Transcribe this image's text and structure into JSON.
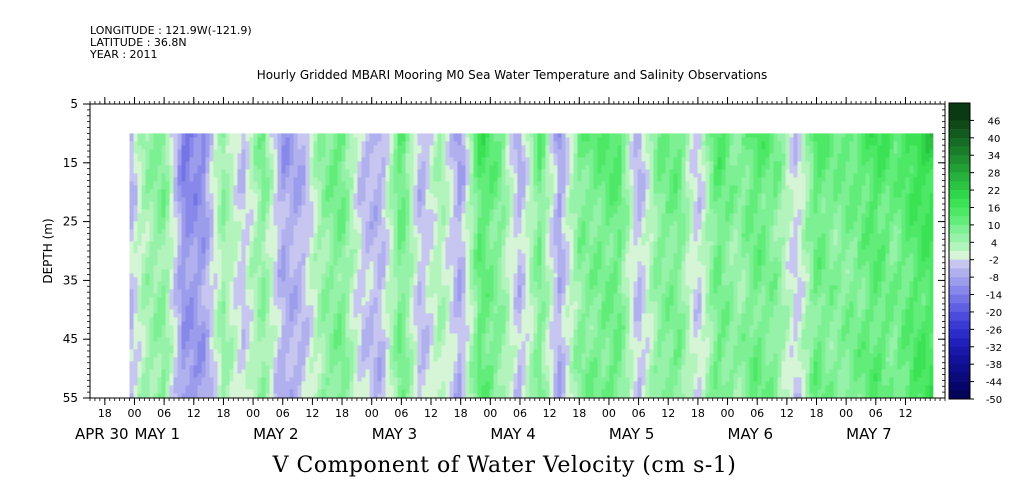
{
  "header": {
    "longitude": "LONGITUDE : 121.9W(-121.9)",
    "latitude": "LATITUDE : 36.8N",
    "year": "YEAR : 2011",
    "title": "Hourly Gridded MBARI Mooring M0 Sea Water Temperature and Salinity Observations"
  },
  "caption": "V Component of Water Velocity (cm s-1)",
  "chart_data": {
    "type": "heatmap",
    "title": "Hourly Gridded MBARI Mooring M0 Sea Water Temperature and Salinity Observations",
    "xlabel": "",
    "ylabel": "DEPTH (m)",
    "value_label": "V Component of Water Velocity (cm s-1)",
    "ylim": [
      55,
      5
    ],
    "y_ticks": [
      5,
      15,
      25,
      35,
      45,
      55
    ],
    "data_depth_range": [
      10,
      55
    ],
    "x_start": "2011-04-30 15:00",
    "x_end": "2011-05-07 20:00",
    "data_x_start": "2011-04-30 23:00",
    "x_tick_labels": [
      "18",
      "00",
      "06",
      "12",
      "18",
      "00",
      "06",
      "12",
      "18",
      "00",
      "06",
      "12",
      "18",
      "00",
      "06",
      "12",
      "18",
      "00",
      "06",
      "12",
      "18",
      "00",
      "06",
      "12",
      "18",
      "00",
      "06",
      "12"
    ],
    "x_tick_times": [
      "2011-04-30 18:00",
      "2011-05-01 00:00",
      "2011-05-01 06:00",
      "2011-05-01 12:00",
      "2011-05-01 18:00",
      "2011-05-02 00:00",
      "2011-05-02 06:00",
      "2011-05-02 12:00",
      "2011-05-02 18:00",
      "2011-05-03 00:00",
      "2011-05-03 06:00",
      "2011-05-03 12:00",
      "2011-05-03 18:00",
      "2011-05-04 00:00",
      "2011-05-04 06:00",
      "2011-05-04 12:00",
      "2011-05-04 18:00",
      "2011-05-05 00:00",
      "2011-05-05 06:00",
      "2011-05-05 12:00",
      "2011-05-05 18:00",
      "2011-05-06 00:00",
      "2011-05-06 06:00",
      "2011-05-06 12:00",
      "2011-05-06 18:00",
      "2011-05-07 00:00",
      "2011-05-07 06:00",
      "2011-05-07 12:00"
    ],
    "day_labels": [
      "APR 30",
      "MAY  1",
      "MAY  2",
      "MAY  3",
      "MAY  4",
      "MAY  5",
      "MAY  6",
      "MAY  7"
    ],
    "day_label_times": [
      "2011-04-30 00:00",
      "2011-05-01 00:00",
      "2011-05-02 00:00",
      "2011-05-03 00:00",
      "2011-05-04 00:00",
      "2011-05-05 00:00",
      "2011-05-06 00:00",
      "2011-05-07 00:00"
    ],
    "colorbar": {
      "labels": [
        "46",
        "40",
        "34",
        "28",
        "22",
        "16",
        "10",
        "4",
        "-2",
        "-8",
        "-14",
        "-20",
        "-26",
        "-32",
        "-38",
        "-44",
        "-50"
      ],
      "bins": [
        {
          "min": 46,
          "max": 52,
          "color": "#0a3a12"
        },
        {
          "min": 43,
          "max": 46,
          "color": "#0f4a18"
        },
        {
          "min": 40,
          "max": 43,
          "color": "#125a1e"
        },
        {
          "min": 37,
          "max": 40,
          "color": "#166c24"
        },
        {
          "min": 34,
          "max": 37,
          "color": "#1a7d2a"
        },
        {
          "min": 31,
          "max": 34,
          "color": "#1e8e30"
        },
        {
          "min": 28,
          "max": 31,
          "color": "#22a036"
        },
        {
          "min": 25,
          "max": 28,
          "color": "#26b23c"
        },
        {
          "min": 22,
          "max": 25,
          "color": "#2ac442"
        },
        {
          "min": 19,
          "max": 22,
          "color": "#30d64a"
        },
        {
          "min": 16,
          "max": 19,
          "color": "#3ae254"
        },
        {
          "min": 13,
          "max": 16,
          "color": "#4ce866"
        },
        {
          "min": 10,
          "max": 13,
          "color": "#62ec7a"
        },
        {
          "min": 7,
          "max": 10,
          "color": "#7cf092"
        },
        {
          "min": 4,
          "max": 7,
          "color": "#96f2a8"
        },
        {
          "min": 1,
          "max": 4,
          "color": "#b2f4bc"
        },
        {
          "min": -2,
          "max": 1,
          "color": "#d6f4d6"
        },
        {
          "min": -5,
          "max": -2,
          "color": "#c6c6f0"
        },
        {
          "min": -8,
          "max": -5,
          "color": "#b0b0ee"
        },
        {
          "min": -11,
          "max": -8,
          "color": "#9c9cec"
        },
        {
          "min": -14,
          "max": -11,
          "color": "#8888ea"
        },
        {
          "min": -17,
          "max": -14,
          "color": "#7474e6"
        },
        {
          "min": -20,
          "max": -17,
          "color": "#6060e2"
        },
        {
          "min": -23,
          "max": -20,
          "color": "#4c4cdc"
        },
        {
          "min": -26,
          "max": -23,
          "color": "#3a3ad4"
        },
        {
          "min": -29,
          "max": -26,
          "color": "#2c2cc8"
        },
        {
          "min": -32,
          "max": -29,
          "color": "#2020ba"
        },
        {
          "min": -35,
          "max": -32,
          "color": "#1818aa"
        },
        {
          "min": -38,
          "max": -35,
          "color": "#12129a"
        },
        {
          "min": -41,
          "max": -38,
          "color": "#0e0e8a"
        },
        {
          "min": -44,
          "max": -41,
          "color": "#0a0a7a"
        },
        {
          "min": -47,
          "max": -44,
          "color": "#06066a"
        },
        {
          "min": -50,
          "max": -47,
          "color": "#03035a"
        }
      ]
    },
    "vertical_profile_cm_s": [
      {
        "depth": 10,
        "v": 10
      },
      {
        "depth": 15,
        "v": 7
      },
      {
        "depth": 20,
        "v": 5
      },
      {
        "depth": 25,
        "v": 3
      },
      {
        "depth": 30,
        "v": 2
      },
      {
        "depth": 35,
        "v": 1
      },
      {
        "depth": 40,
        "v": 1
      },
      {
        "depth": 45,
        "v": 2
      },
      {
        "depth": 50,
        "v": 3
      },
      {
        "depth": 55,
        "v": 3
      }
    ],
    "column_pattern_cm_s": [
      {
        "time": "2011-04-30 23:00",
        "v": -6
      },
      {
        "time": "2011-05-01 02:00",
        "v": 4
      },
      {
        "time": "2011-05-01 06:00",
        "v": 8
      },
      {
        "time": "2011-05-01 10:00",
        "v": -12
      },
      {
        "time": "2011-05-01 14:00",
        "v": -10
      },
      {
        "time": "2011-05-01 18:00",
        "v": 6
      },
      {
        "time": "2011-05-01 22:00",
        "v": -4
      },
      {
        "time": "2011-05-02 02:00",
        "v": 8
      },
      {
        "time": "2011-05-02 06:00",
        "v": -8
      },
      {
        "time": "2011-05-02 10:00",
        "v": -6
      },
      {
        "time": "2011-05-02 14:00",
        "v": 6
      },
      {
        "time": "2011-05-02 18:00",
        "v": 10
      },
      {
        "time": "2011-05-02 22:00",
        "v": -4
      },
      {
        "time": "2011-05-03 02:00",
        "v": -6
      },
      {
        "time": "2011-05-03 06:00",
        "v": 12
      },
      {
        "time": "2011-05-03 10:00",
        "v": -6
      },
      {
        "time": "2011-05-03 14:00",
        "v": 4
      },
      {
        "time": "2011-05-03 18:00",
        "v": -8
      },
      {
        "time": "2011-05-03 22:00",
        "v": 14
      },
      {
        "time": "2011-05-04 02:00",
        "v": 8
      },
      {
        "time": "2011-05-04 06:00",
        "v": -6
      },
      {
        "time": "2011-05-04 10:00",
        "v": 10
      },
      {
        "time": "2011-05-04 14:00",
        "v": -8
      },
      {
        "time": "2011-05-04 18:00",
        "v": 8
      },
      {
        "time": "2011-05-04 22:00",
        "v": 10
      },
      {
        "time": "2011-05-05 02:00",
        "v": 12
      },
      {
        "time": "2011-05-05 06:00",
        "v": -6
      },
      {
        "time": "2011-05-05 10:00",
        "v": 8
      },
      {
        "time": "2011-05-05 14:00",
        "v": 10
      },
      {
        "time": "2011-05-05 18:00",
        "v": -4
      },
      {
        "time": "2011-05-05 22:00",
        "v": 12
      },
      {
        "time": "2011-05-06 02:00",
        "v": 6
      },
      {
        "time": "2011-05-06 06:00",
        "v": 12
      },
      {
        "time": "2011-05-06 10:00",
        "v": 8
      },
      {
        "time": "2011-05-06 14:00",
        "v": -4
      },
      {
        "time": "2011-05-06 18:00",
        "v": 12
      },
      {
        "time": "2011-05-06 22:00",
        "v": 8
      },
      {
        "time": "2011-05-07 02:00",
        "v": 10
      },
      {
        "time": "2011-05-07 06:00",
        "v": 14
      },
      {
        "time": "2011-05-07 10:00",
        "v": 10
      },
      {
        "time": "2011-05-07 14:00",
        "v": 16
      },
      {
        "time": "2011-05-07 18:00",
        "v": 18
      }
    ]
  }
}
